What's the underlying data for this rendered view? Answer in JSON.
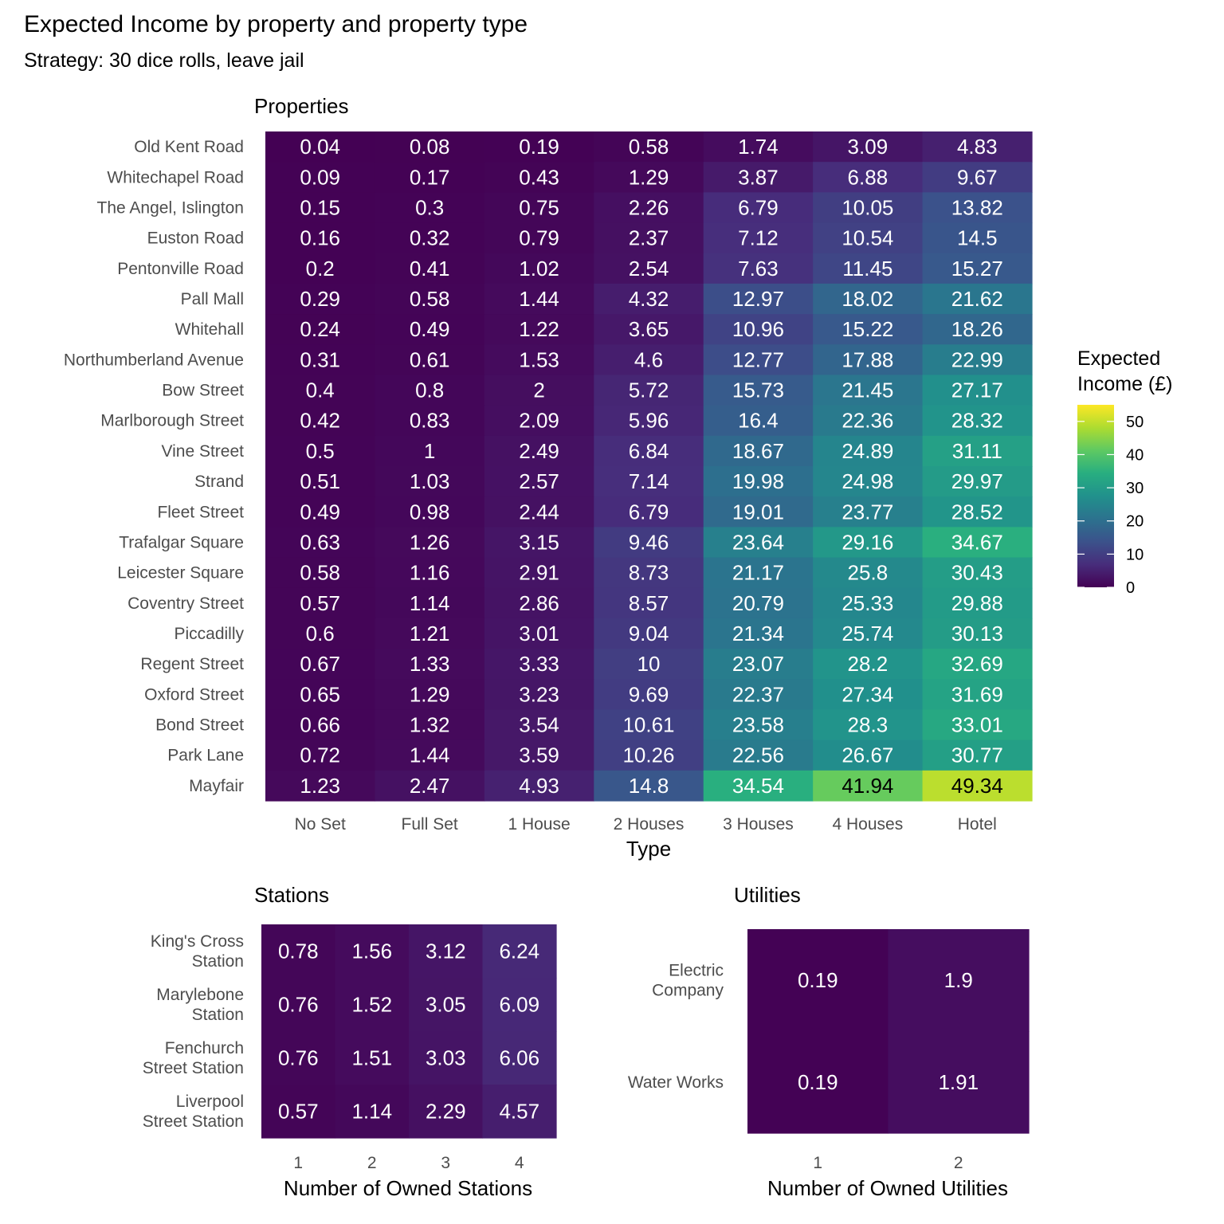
{
  "title": "Expected Income by property and property type",
  "subtitle": "Strategy: 30 dice rolls, leave jail",
  "legend": {
    "title_line1": "Expected",
    "title_line2": "Income (£)",
    "ticks": [
      0,
      10,
      20,
      30,
      40,
      50
    ],
    "range": [
      0,
      55
    ],
    "colormap": "viridis"
  },
  "chart_data": [
    {
      "type": "heatmap",
      "title": "Properties",
      "xlabel": "Type",
      "ylabel": "",
      "x": [
        "No Set",
        "Full Set",
        "1 House",
        "2 Houses",
        "3 Houses",
        "4 Houses",
        "Hotel"
      ],
      "y": [
        "Old Kent Road",
        "Whitechapel Road",
        "The Angel, Islington",
        "Euston Road",
        "Pentonville Road",
        "Pall Mall",
        "Whitehall",
        "Northumberland Avenue",
        "Bow Street",
        "Marlborough Street",
        "Vine Street",
        "Strand",
        "Fleet Street",
        "Trafalgar Square",
        "Leicester Square",
        "Coventry Street",
        "Piccadilly",
        "Regent Street",
        "Oxford Street",
        "Bond Street",
        "Park Lane",
        "Mayfair"
      ],
      "values": [
        [
          0.04,
          0.08,
          0.19,
          0.58,
          1.74,
          3.09,
          4.83
        ],
        [
          0.09,
          0.17,
          0.43,
          1.29,
          3.87,
          6.88,
          9.67
        ],
        [
          0.15,
          0.3,
          0.75,
          2.26,
          6.79,
          10.05,
          13.82
        ],
        [
          0.16,
          0.32,
          0.79,
          2.37,
          7.12,
          10.54,
          14.5
        ],
        [
          0.2,
          0.41,
          1.02,
          2.54,
          7.63,
          11.45,
          15.27
        ],
        [
          0.29,
          0.58,
          1.44,
          4.32,
          12.97,
          18.02,
          21.62
        ],
        [
          0.24,
          0.49,
          1.22,
          3.65,
          10.96,
          15.22,
          18.26
        ],
        [
          0.31,
          0.61,
          1.53,
          4.6,
          12.77,
          17.88,
          22.99
        ],
        [
          0.4,
          0.8,
          2,
          5.72,
          15.73,
          21.45,
          27.17
        ],
        [
          0.42,
          0.83,
          2.09,
          5.96,
          16.4,
          22.36,
          28.32
        ],
        [
          0.5,
          1,
          2.49,
          6.84,
          18.67,
          24.89,
          31.11
        ],
        [
          0.51,
          1.03,
          2.57,
          7.14,
          19.98,
          24.98,
          29.97
        ],
        [
          0.49,
          0.98,
          2.44,
          6.79,
          19.01,
          23.77,
          28.52
        ],
        [
          0.63,
          1.26,
          3.15,
          9.46,
          23.64,
          29.16,
          34.67
        ],
        [
          0.58,
          1.16,
          2.91,
          8.73,
          21.17,
          25.8,
          30.43
        ],
        [
          0.57,
          1.14,
          2.86,
          8.57,
          20.79,
          25.33,
          29.88
        ],
        [
          0.6,
          1.21,
          3.01,
          9.04,
          21.34,
          25.74,
          30.13
        ],
        [
          0.67,
          1.33,
          3.33,
          10,
          23.07,
          28.2,
          32.69
        ],
        [
          0.65,
          1.29,
          3.23,
          9.69,
          22.37,
          27.34,
          31.69
        ],
        [
          0.66,
          1.32,
          3.54,
          10.61,
          23.58,
          28.3,
          33.01
        ],
        [
          0.72,
          1.44,
          3.59,
          10.26,
          22.56,
          26.67,
          30.77
        ],
        [
          1.23,
          2.47,
          4.93,
          14.8,
          34.54,
          41.94,
          49.34
        ]
      ]
    },
    {
      "type": "heatmap",
      "title": "Stations",
      "xlabel": "Number of Owned Stations",
      "ylabel": "",
      "x": [
        "1",
        "2",
        "3",
        "4"
      ],
      "y": [
        [
          "King's Cross",
          "Station"
        ],
        [
          "Marylebone",
          "Station"
        ],
        [
          "Fenchurch",
          "Street Station"
        ],
        [
          "Liverpool",
          "Street Station"
        ]
      ],
      "values": [
        [
          0.78,
          1.56,
          3.12,
          6.24
        ],
        [
          0.76,
          1.52,
          3.05,
          6.09
        ],
        [
          0.76,
          1.51,
          3.03,
          6.06
        ],
        [
          0.57,
          1.14,
          2.29,
          4.57
        ]
      ]
    },
    {
      "type": "heatmap",
      "title": "Utilities",
      "xlabel": "Number of Owned Utilities",
      "ylabel": "",
      "x": [
        "1",
        "2"
      ],
      "y": [
        [
          "Electric",
          "Company"
        ],
        [
          "Water Works"
        ]
      ],
      "values": [
        [
          0.19,
          1.9
        ],
        [
          0.19,
          1.91
        ]
      ]
    }
  ]
}
